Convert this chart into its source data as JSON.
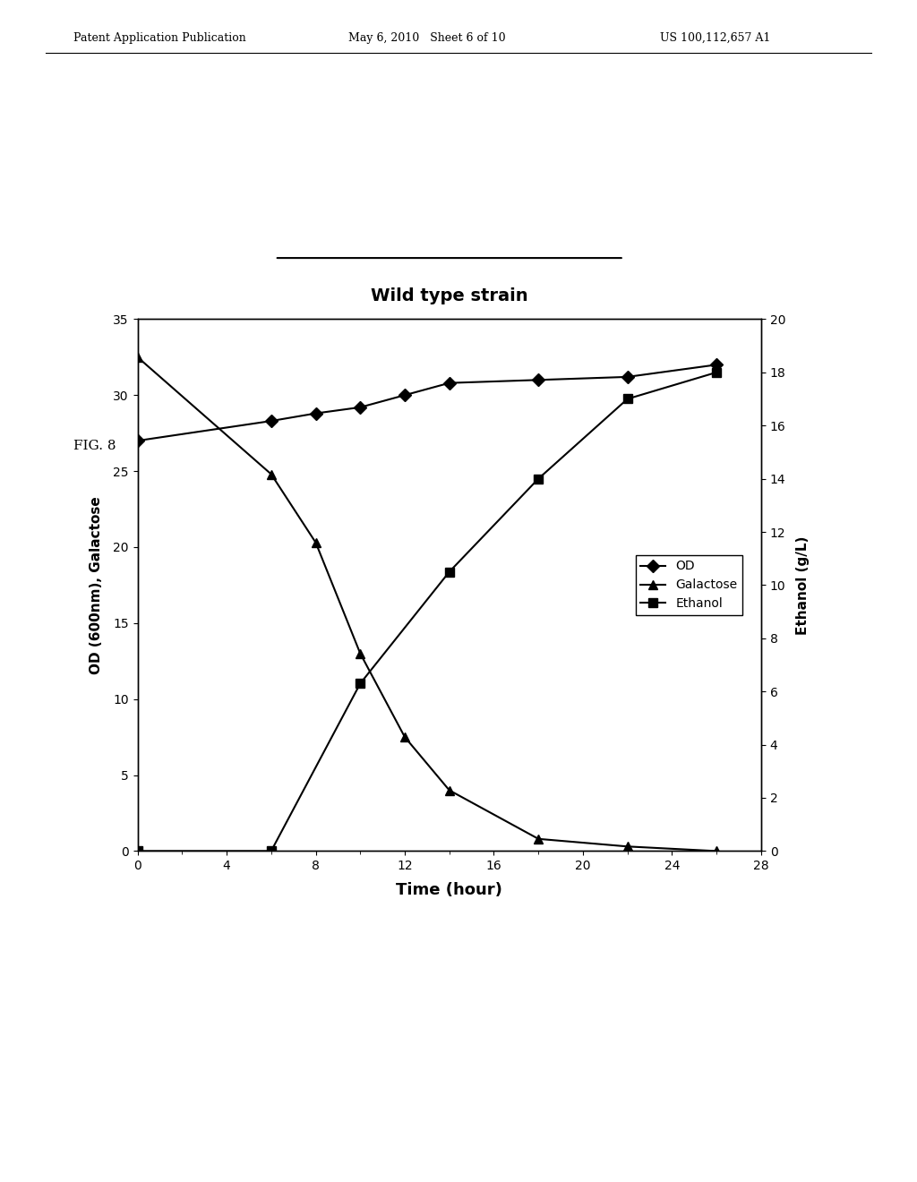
{
  "title": "Wild type strain",
  "xlabel": "Time (hour)",
  "ylabel_left": "OD (600nm), Galactose",
  "ylabel_right": "Ethanol (g/L)",
  "time": [
    0,
    6,
    8,
    10,
    12,
    14,
    18,
    22,
    26
  ],
  "OD": [
    27,
    28.3,
    28.8,
    29.2,
    30.0,
    30.8,
    31.0,
    31.2,
    32.0
  ],
  "galactose": [
    32.5,
    24.8,
    20.3,
    13.0,
    7.5,
    4.0,
    0.8,
    0.3,
    0.0
  ],
  "ethanol_time": [
    0,
    6,
    10,
    14,
    18,
    22,
    26
  ],
  "ethanol": [
    0,
    0,
    6.3,
    10.5,
    14.0,
    17.0,
    18.0
  ],
  "left_ylim": [
    0,
    35
  ],
  "left_yticks": [
    0,
    5,
    10,
    15,
    20,
    25,
    30,
    35
  ],
  "right_ylim": [
    0,
    20
  ],
  "right_yticks": [
    0,
    2,
    4,
    6,
    8,
    10,
    12,
    14,
    16,
    18,
    20
  ],
  "xlim": [
    0,
    28
  ],
  "xticks": [
    0,
    4,
    8,
    12,
    16,
    20,
    24,
    28
  ],
  "color": "#000000",
  "marker_OD": "D",
  "marker_galactose": "^",
  "marker_ethanol": "s",
  "markersize": 7,
  "linewidth": 1.5,
  "fig_label": "FIG. 8",
  "header_left": "Patent Application Publication",
  "header_mid": "May 6, 2010   Sheet 6 of 10",
  "header_right": "US 100,112,657 A1",
  "background_color": "#ffffff"
}
